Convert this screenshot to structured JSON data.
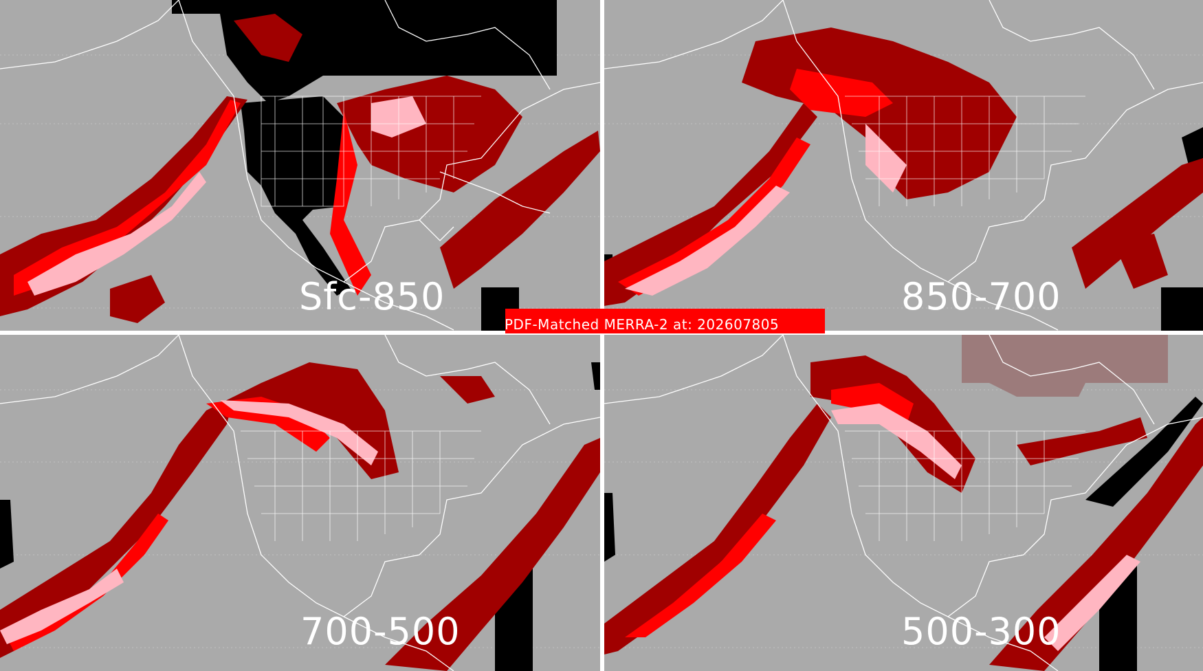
{
  "title": "PDF-Matched MERRA-2 at: 202607805",
  "panels": [
    {
      "label": "Sfc-850"
    },
    {
      "label": "850-700"
    },
    {
      "label": "700-500"
    },
    {
      "label": "500-300"
    }
  ],
  "colors": {
    "background": "#aaaaaa",
    "missing": "#000000",
    "level_low": "#9c7b7b",
    "level_mid": "#a00000",
    "level_high": "#ff0000",
    "level_peak": "#ffb6c1",
    "coastlines": "#ffffff",
    "title_banner": "#ff0000"
  }
}
